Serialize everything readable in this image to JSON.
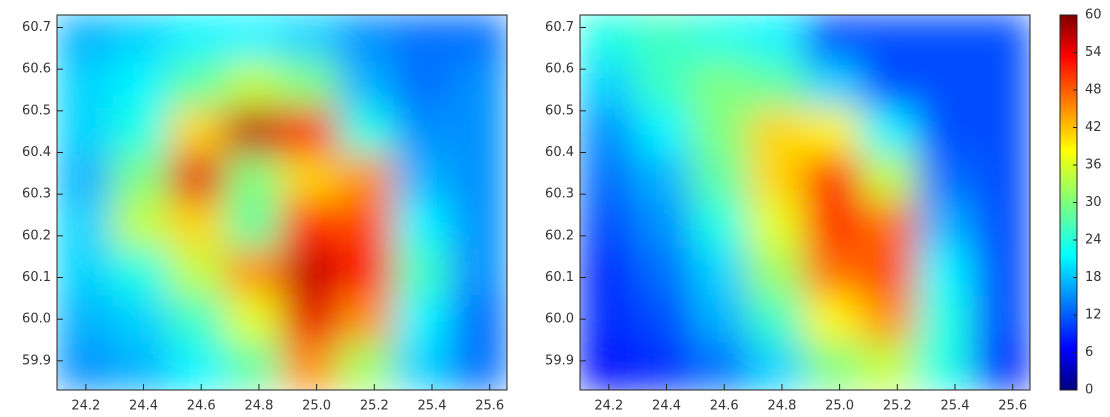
{
  "chart_data": [
    {
      "type": "heatmap",
      "colormap": "jet",
      "xlim": [
        24.1,
        25.66
      ],
      "ylim": [
        59.83,
        60.73
      ],
      "xticks": [
        24.2,
        24.4,
        24.6,
        24.8,
        {
          "value": 25,
          "label": "25.0"
        },
        25.2,
        25.4,
        25.6
      ],
      "yticks": [
        59.9,
        {
          "value": 60,
          "label": "60.0"
        },
        60.1,
        60.2,
        60.3,
        60.4,
        60.5,
        60.6,
        60.7
      ],
      "zlim": [
        0,
        60
      ],
      "z": [
        [
          18,
          20,
          22,
          22,
          20,
          16,
          14,
          14
        ],
        [
          20,
          22,
          28,
          34,
          30,
          18,
          14,
          16
        ],
        [
          20,
          24,
          40,
          56,
          52,
          24,
          16,
          16
        ],
        [
          18,
          30,
          54,
          30,
          40,
          44,
          18,
          16
        ],
        [
          20,
          34,
          40,
          28,
          50,
          48,
          22,
          16
        ],
        [
          20,
          24,
          34,
          44,
          56,
          52,
          26,
          16
        ],
        [
          18,
          20,
          26,
          36,
          54,
          44,
          22,
          14
        ],
        [
          16,
          18,
          22,
          28,
          44,
          32,
          20,
          14
        ]
      ]
    },
    {
      "type": "heatmap",
      "colormap": "jet",
      "xlim": [
        24.1,
        25.66
      ],
      "ylim": [
        59.83,
        60.73
      ],
      "xticks": [
        24.2,
        24.4,
        24.6,
        24.8,
        {
          "value": 25,
          "label": "25.0"
        },
        25.2,
        25.4,
        25.6
      ],
      "yticks": [
        59.9,
        {
          "value": 60,
          "label": "60.0"
        },
        60.1,
        60.2,
        60.3,
        60.4,
        60.5,
        60.6,
        60.7
      ],
      "zlim": [
        0,
        60
      ],
      "z": [
        [
          24,
          26,
          24,
          22,
          12,
          12,
          12,
          12
        ],
        [
          20,
          26,
          30,
          28,
          20,
          12,
          12,
          12
        ],
        [
          16,
          22,
          30,
          40,
          38,
          22,
          12,
          12
        ],
        [
          14,
          18,
          28,
          40,
          50,
          34,
          14,
          12
        ],
        [
          12,
          16,
          24,
          36,
          50,
          46,
          18,
          12
        ],
        [
          10,
          14,
          20,
          32,
          46,
          48,
          22,
          12
        ],
        [
          10,
          12,
          18,
          26,
          38,
          44,
          24,
          12
        ],
        [
          8,
          10,
          14,
          20,
          30,
          34,
          24,
          10
        ]
      ],
      "colorbar": {
        "zlim": [
          0,
          60
        ],
        "ticks": [
          0,
          6,
          12,
          18,
          24,
          30,
          36,
          42,
          48,
          54,
          60
        ]
      }
    }
  ]
}
